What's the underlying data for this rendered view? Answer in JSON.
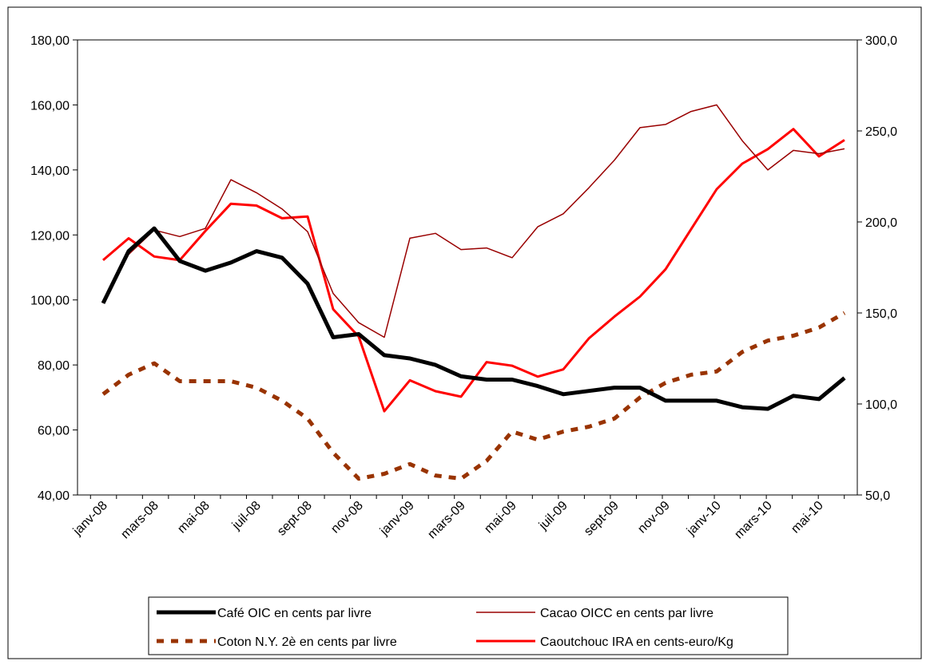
{
  "chart_data": {
    "type": "line",
    "categories": [
      "janv-08",
      null,
      "mars-08",
      null,
      "mai-08",
      null,
      "juil-08",
      null,
      "sept-08",
      null,
      "nov-08",
      null,
      "janv-09",
      null,
      "mars-09",
      null,
      "mai-09",
      null,
      "juil-09",
      null,
      "sept-09",
      null,
      "nov-09",
      null,
      "janv-10",
      null,
      "mars-10",
      null,
      "mai-10",
      null
    ],
    "series": [
      {
        "name": "Café  OIC en cents par livre",
        "color": "#000000",
        "width": 5,
        "dash": false,
        "values": [
          99,
          115,
          122,
          112,
          109,
          111.5,
          115,
          113,
          105,
          88.5,
          89.5,
          83,
          82,
          80,
          76.5,
          75.5,
          75.5,
          73.5,
          71,
          72,
          73,
          73,
          69,
          69,
          69,
          67,
          66.5,
          70.5,
          69.5,
          76
        ]
      },
      {
        "name": "Cacao OICC en cents par livre",
        "color": "#990000",
        "width": 1.5,
        "dash": false,
        "values": [
          99,
          114,
          121.5,
          119.5,
          122,
          137,
          133,
          128,
          121,
          102,
          93,
          88.5,
          119,
          120.5,
          115.5,
          116,
          113,
          122.5,
          126.5,
          134.5,
          143,
          153,
          154,
          158,
          160,
          149,
          140,
          146,
          145,
          146.5
        ]
      },
      {
        "name": "Coton N.Y. 2è en cents par livre",
        "color": "#993300",
        "width": 5,
        "dash": true,
        "values": [
          71,
          77,
          80.5,
          75,
          75,
          75,
          73,
          69,
          63.5,
          53,
          45,
          46.5,
          49.5,
          46,
          45,
          50.5,
          59.5,
          57,
          59.5,
          61,
          63.5,
          70,
          74.5,
          77,
          78,
          84,
          87.5,
          89,
          91.5,
          96
        ]
      },
      {
        "name": "Caoutchouc IRA en cents-euro/Kg",
        "color": "#ff0000",
        "width": 3,
        "dash": false,
        "axis": "y2",
        "values": [
          179,
          191,
          181,
          179,
          195,
          210,
          209,
          202,
          203,
          152,
          137,
          96,
          113,
          107,
          104,
          123,
          121,
          115,
          119,
          136,
          148,
          159,
          174,
          196,
          218,
          232,
          240,
          251,
          236,
          245
        ]
      }
    ],
    "ylim": [
      40,
      180
    ],
    "yticks": [
      {
        "value": 40,
        "label": "40,00"
      },
      {
        "value": 60,
        "label": "60,00"
      },
      {
        "value": 80,
        "label": "80,00"
      },
      {
        "value": 100,
        "label": "100,00"
      },
      {
        "value": 120,
        "label": "120,00"
      },
      {
        "value": 140,
        "label": "140,00"
      },
      {
        "value": 160,
        "label": "160,00"
      },
      {
        "value": 180,
        "label": "180,00"
      }
    ],
    "y2lim": [
      50,
      300
    ],
    "y2ticks": [
      {
        "value": 50,
        "label": "50,0"
      },
      {
        "value": 100,
        "label": "100,0"
      },
      {
        "value": 150,
        "label": "150,0"
      },
      {
        "value": 200,
        "label": "200,0"
      },
      {
        "value": 250,
        "label": "250,0"
      },
      {
        "value": 300,
        "label": "300,0"
      }
    ],
    "grid": false,
    "legend": "bottom"
  }
}
